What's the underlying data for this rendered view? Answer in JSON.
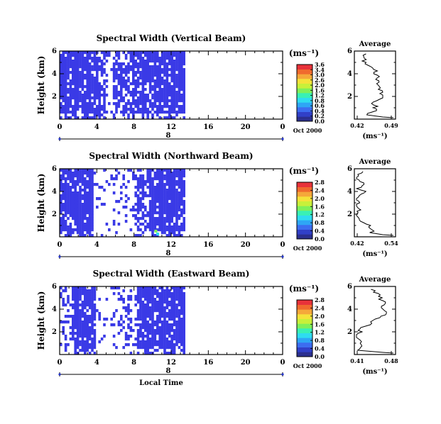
{
  "colors": {
    "field": "#3a3ae6",
    "scale": [
      "#2b2f8f",
      "#3140c8",
      "#3c6df0",
      "#2ea6f5",
      "#2fdcf0",
      "#39f0b5",
      "#7ff05a",
      "#c8f03a",
      "#f5e23a",
      "#f5a83a",
      "#f06a2e",
      "#e8323a"
    ],
    "trace": "#000000"
  },
  "chart_data": [
    {
      "type": "heatmap",
      "title": "Spectral Width (Vertical Beam)",
      "ylabel": "Height (km)",
      "x_ticks": [
        "0",
        "4",
        "8",
        "12",
        "16",
        "20",
        "0"
      ],
      "y_ticks": [
        "6",
        "4",
        "2"
      ],
      "xlim": [
        0,
        24
      ],
      "data_xlim": [
        0,
        13.5
      ],
      "ylim": [
        0,
        6
      ],
      "date_day": "8",
      "date_caption": "Oct 2000",
      "colorbar": {
        "unit": "(ms⁻¹)",
        "ticks": [
          "3.6",
          "3.4",
          "3.0",
          "2.6",
          "2.0",
          "1.6",
          "1.2",
          "0.8",
          "0.6",
          "0.4",
          "0.2",
          "0.0"
        ]
      },
      "gaps": [
        [
          4.0,
          4.8,
          0.25
        ],
        [
          4.8,
          5.6,
          0.8
        ],
        [
          5.6,
          7.2,
          0.4
        ],
        [
          7.2,
          8.0,
          0.3
        ]
      ],
      "average": {
        "title": "Average",
        "xlabel": "(ms⁻¹)",
        "x_ticks": [
          "0.42",
          "0.49"
        ],
        "y_ticks": [
          "6",
          "4",
          "2"
        ],
        "xlim": [
          0.42,
          0.49
        ]
      }
    },
    {
      "type": "heatmap",
      "title": "Spectral Width (Northward Beam)",
      "ylabel": "Height (km)",
      "x_ticks": [
        "0",
        "4",
        "8",
        "12",
        "16",
        "20",
        "0"
      ],
      "y_ticks": [
        "6",
        "4",
        "2"
      ],
      "xlim": [
        0,
        24
      ],
      "data_xlim": [
        0,
        13.5
      ],
      "ylim": [
        0,
        6
      ],
      "date_day": "8",
      "date_caption": "Oct 2000",
      "colorbar": {
        "unit": "(ms⁻¹)",
        "ticks": [
          "2.8",
          "2.4",
          "2.0",
          "1.6",
          "1.2",
          "0.8",
          "0.4",
          "0.0"
        ]
      },
      "gaps": [
        [
          3.5,
          5.2,
          0.9
        ],
        [
          5.2,
          8.0,
          0.8
        ],
        [
          8.0,
          9.5,
          0.35
        ]
      ],
      "average": {
        "title": "Average",
        "xlabel": "(ms⁻¹)",
        "x_ticks": [
          "0.42",
          "0.54"
        ],
        "y_ticks": [
          "6",
          "4",
          "2"
        ],
        "xlim": [
          0.42,
          0.54
        ]
      }
    },
    {
      "type": "heatmap",
      "title": "Spectral Width (Eastward Beam)",
      "ylabel": "Height (km)",
      "x_ticks": [
        "0",
        "4",
        "8",
        "12",
        "16",
        "20",
        "0"
      ],
      "y_ticks": [
        "6",
        "4",
        "2"
      ],
      "xlim": [
        0,
        24
      ],
      "data_xlim": [
        0,
        13.5
      ],
      "ylim": [
        0,
        6
      ],
      "date_day": "8",
      "date_caption": "Oct 2000",
      "xlabel": "Local Time",
      "colorbar": {
        "unit": "(ms⁻¹)",
        "ticks": [
          "2.8",
          "2.4",
          "2.0",
          "1.6",
          "1.2",
          "0.8",
          "0.4",
          "0.0"
        ]
      },
      "gaps": [
        [
          0.0,
          1.2,
          0.7
        ],
        [
          3.8,
          5.0,
          0.85
        ],
        [
          5.0,
          5.6,
          0.9
        ],
        [
          5.6,
          8.2,
          0.7
        ]
      ],
      "average": {
        "title": "Average",
        "xlabel": "(ms⁻¹)",
        "x_ticks": [
          "0.41",
          "0.48"
        ],
        "y_ticks": [
          "6",
          "4",
          "2"
        ],
        "xlim": [
          0.41,
          0.48
        ]
      }
    }
  ]
}
